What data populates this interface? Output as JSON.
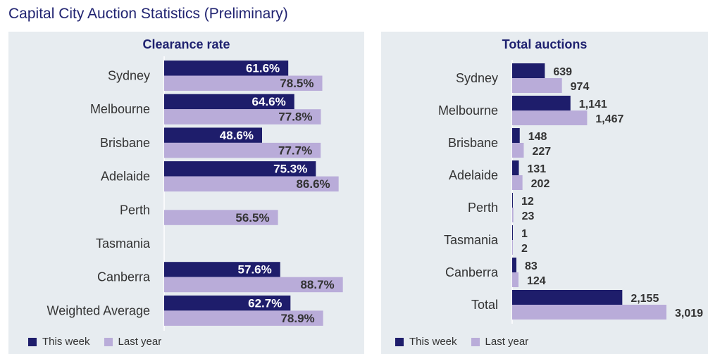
{
  "page": {
    "title": "Capital City Auction Statistics (Preliminary)"
  },
  "colors": {
    "this_week": "#1e1d6b",
    "last_year": "#b9acd9",
    "label": "#333333",
    "panel_bg": "#e7ecf0"
  },
  "legend": {
    "this_week": "This week",
    "last_year": "Last year"
  },
  "chart_data": [
    {
      "type": "bar",
      "orientation": "horizontal",
      "title": "Clearance rate",
      "categories": [
        "Sydney",
        "Melbourne",
        "Brisbane",
        "Adelaide",
        "Perth",
        "Tasmania",
        "Canberra",
        "Weighted Average"
      ],
      "series": [
        {
          "name": "This week",
          "values": [
            61.6,
            64.6,
            48.6,
            75.3,
            null,
            null,
            57.6,
            62.7
          ],
          "labels": [
            "61.6%",
            "64.6%",
            "48.6%",
            "75.3%",
            null,
            null,
            "57.6%",
            "62.7%"
          ]
        },
        {
          "name": "Last year",
          "values": [
            78.5,
            77.8,
            77.7,
            86.6,
            56.5,
            null,
            88.7,
            78.9
          ],
          "labels": [
            "78.5%",
            "77.8%",
            "77.7%",
            "86.6%",
            "56.5%",
            null,
            "88.7%",
            "78.9%"
          ]
        }
      ],
      "xlim": [
        0,
        100
      ],
      "grid": false,
      "legend_position": "bottom-left",
      "value_labels": "inside"
    },
    {
      "type": "bar",
      "orientation": "horizontal",
      "title": "Total auctions",
      "categories": [
        "Sydney",
        "Melbourne",
        "Brisbane",
        "Adelaide",
        "Perth",
        "Tasmania",
        "Canberra",
        "Total"
      ],
      "series": [
        {
          "name": "This week",
          "values": [
            639,
            1141,
            148,
            131,
            12,
            1,
            83,
            2155
          ],
          "labels": [
            "639",
            "1,141",
            "148",
            "131",
            "12",
            "1",
            "83",
            "2,155"
          ]
        },
        {
          "name": "Last year",
          "values": [
            974,
            1467,
            227,
            202,
            23,
            2,
            124,
            3019
          ],
          "labels": [
            "974",
            "1,467",
            "227",
            "202",
            "23",
            "2",
            "124",
            "3,019"
          ]
        }
      ],
      "xlim": [
        0,
        3019
      ],
      "grid": false,
      "legend_position": "bottom-left",
      "value_labels": "outside"
    }
  ]
}
